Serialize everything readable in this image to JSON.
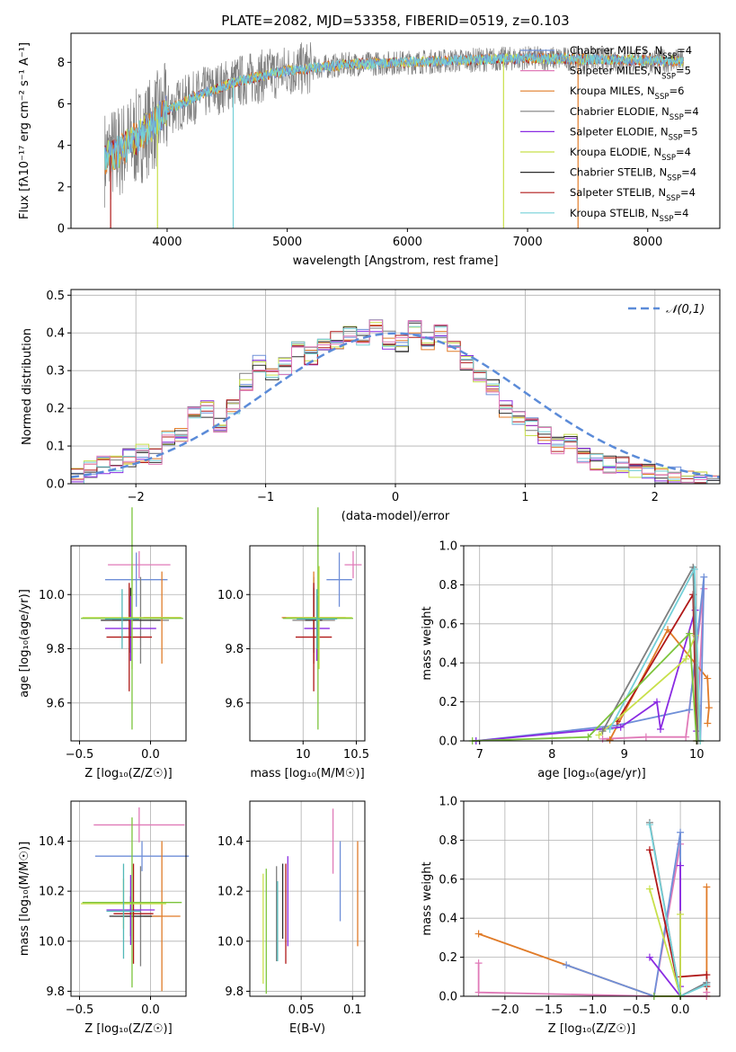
{
  "title": "PLATE=2082, MJD=53358, FIBERID=0519, z=0.103",
  "colors": {
    "blue": "#6f8fd8",
    "orange": "#e07b28",
    "gray": "#7f7f7f",
    "purple": "#8a2be2",
    "yellow": "#c8e04a",
    "dark": "#2c2c2c",
    "red": "#b01818",
    "cyan": "#74d0d8",
    "pink": "#e07ab8",
    "green": "#7cc43c",
    "teal": "#52b8b8"
  },
  "chart_data": [
    {
      "id": "spectrum",
      "type": "line",
      "xlabel": "wavelength [Angstrom, rest frame]",
      "ylabel": "Flux [fλ10⁻¹⁷ erg cm⁻² s⁻¹ A⁻¹]",
      "xlim": [
        3200,
        8600
      ],
      "ylim": [
        0,
        9.4
      ],
      "xticks": [
        4000,
        5000,
        6000,
        7000,
        8000
      ],
      "yticks": [
        0,
        2,
        4,
        6,
        8
      ],
      "grid": false,
      "legend_loc": "right",
      "continuum": {
        "x": [
          3480,
          3600,
          3800,
          4000,
          4300,
          4600,
          5000,
          5500,
          6000,
          6500,
          7000,
          7500,
          8000,
          8300
        ],
        "y": [
          3.4,
          3.7,
          4.6,
          5.7,
          6.5,
          7.1,
          7.6,
          7.9,
          8.0,
          8.1,
          8.2,
          8.15,
          8.1,
          8.05
        ]
      },
      "series": [
        {
          "name": "Chabrier MILES, N_SSP=4",
          "color_key": "blue"
        },
        {
          "name": "Salpeter MILES, N_SSP=5",
          "color_key": "pink"
        },
        {
          "name": "Kroupa MILES, N_SSP=6",
          "color_key": "orange"
        },
        {
          "name": "Chabrier ELODIE, N_SSP=4",
          "color_key": "gray"
        },
        {
          "name": "Salpeter ELODIE, N_SSP=5",
          "color_key": "purple"
        },
        {
          "name": "Kroupa ELODIE, N_SSP=4",
          "color_key": "yellow"
        },
        {
          "name": "Chabrier STELIB, N_SSP=4",
          "color_key": "dark"
        },
        {
          "name": "Salpeter STELIB, N_SSP=4",
          "color_key": "red"
        },
        {
          "name": "Kroupa STELIB, N_SSP=4",
          "color_key": "cyan"
        }
      ],
      "legend_items": [
        {
          "name": "Chabrier MILES, N",
          "sub": "SSP",
          "tail": "=4",
          "color_key": "blue"
        },
        {
          "name": "Salpeter MILES, N",
          "sub": "SSP",
          "tail": "=5",
          "color_key": "pink"
        },
        {
          "name": "Kroupa MILES, N",
          "sub": "SSP",
          "tail": "=6",
          "color_key": "orange"
        },
        {
          "name": "Chabrier ELODIE, N",
          "sub": "SSP",
          "tail": "=4",
          "color_key": "gray"
        },
        {
          "name": "Salpeter ELODIE, N",
          "sub": "SSP",
          "tail": "=5",
          "color_key": "purple"
        },
        {
          "name": "Kroupa ELODIE, N",
          "sub": "SSP",
          "tail": "=4",
          "color_key": "yellow"
        },
        {
          "name": "Chabrier STELIB, N",
          "sub": "SSP",
          "tail": "=4",
          "color_key": "dark"
        },
        {
          "name": "Salpeter STELIB, N",
          "sub": "SSP",
          "tail": "=4",
          "color_key": "red"
        },
        {
          "name": "Kroupa STELIB, N",
          "sub": "SSP",
          "tail": "=4",
          "color_key": "cyan"
        }
      ],
      "drops": [
        {
          "x": 3530,
          "color_key": "red"
        },
        {
          "x": 3920,
          "color_key": "yellow"
        },
        {
          "x": 4550,
          "color_key": "cyan"
        },
        {
          "x": 6800,
          "color_key": "yellow"
        },
        {
          "x": 7420,
          "color_key": "orange"
        }
      ]
    },
    {
      "id": "residuals",
      "type": "bar",
      "xlabel": "(data-model)/error",
      "ylabel": "Normed distribution",
      "xlim": [
        -2.5,
        2.5
      ],
      "ylim": [
        0,
        0.515
      ],
      "xticks": [
        -2,
        -1,
        0,
        1,
        2
      ],
      "yticks": [
        0.0,
        0.1,
        0.2,
        0.3,
        0.4,
        0.5
      ],
      "grid": true,
      "legend": "𝒩(0,1)",
      "legend_loc": "upper right",
      "bin_width": 0.1,
      "bins_start": -2.5,
      "series_colors": [
        "blue",
        "orange",
        "gray",
        "purple",
        "yellow",
        "dark",
        "red",
        "cyan",
        "pink"
      ],
      "base_heights": [
        0.02,
        0.03,
        0.04,
        0.05,
        0.04,
        0.05,
        0.07,
        0.06,
        0.08,
        0.07,
        0.1,
        0.12,
        0.13,
        0.17,
        0.18,
        0.2,
        0.22,
        0.16,
        0.21,
        0.22,
        0.27,
        0.32,
        0.24,
        0.3,
        0.31,
        0.33,
        0.36,
        0.34,
        0.4,
        0.37,
        0.38,
        0.39,
        0.4,
        0.39,
        0.44,
        0.42,
        0.38,
        0.43,
        0.37,
        0.41,
        0.39,
        0.38,
        0.4,
        0.33,
        0.37,
        0.32,
        0.3,
        0.28,
        0.26,
        0.22,
        0.2,
        0.17,
        0.17,
        0.15,
        0.13,
        0.12,
        0.1,
        0.11,
        0.09,
        0.07,
        0.06,
        0.07,
        0.05,
        0.05,
        0.04,
        0.04,
        0.03,
        0.03,
        0.02,
        0.02,
        0.01,
        0.01,
        0.01,
        0.01,
        0.01
      ]
    },
    {
      "id": "age_vs_Z",
      "type": "scatter",
      "xlabel": "Z [log₁₀(Z/Z☉)]",
      "ylabel": "age  [log₁₀(age/yr)]",
      "xlim": [
        -0.56,
        0.25
      ],
      "ylim": [
        9.46,
        10.18
      ],
      "xticks": [
        -0.5,
        0.0
      ],
      "xtick_labels": [
        "−0.5",
        "0.0"
      ],
      "yticks": [
        9.6,
        9.8,
        10.0
      ],
      "grid": true,
      "points": [
        {
          "x": -0.08,
          "y": 10.11,
          "xerr": 0.22,
          "yerr": 0.05,
          "c": "pink"
        },
        {
          "x": -0.1,
          "y": 10.055,
          "xerr": 0.22,
          "yerr": 0.1,
          "c": "blue"
        },
        {
          "x": -0.07,
          "y": 9.905,
          "xerr": 0.2,
          "yerr": 0.16,
          "c": "gray"
        },
        {
          "x": 0.08,
          "y": 9.915,
          "xerr": 0.13,
          "yerr": 0.17,
          "c": "orange"
        },
        {
          "x": -0.14,
          "y": 9.905,
          "xerr": 0.21,
          "yerr": 0.12,
          "c": "dark"
        },
        {
          "x": -0.14,
          "y": 9.875,
          "xerr": 0.18,
          "yerr": 0.12,
          "c": "purple"
        },
        {
          "x": -0.15,
          "y": 9.843,
          "xerr": 0.16,
          "yerr": 0.2,
          "c": "red"
        },
        {
          "x": -0.13,
          "y": 9.915,
          "xerr": 0.35,
          "yerr": 0.19,
          "c": "yellow"
        },
        {
          "x": -0.13,
          "y": 9.912,
          "xerr": 0.36,
          "yerr": 0.41,
          "c": "green"
        },
        {
          "x": -0.2,
          "y": 9.91,
          "xerr": 0.12,
          "yerr": 0.11,
          "c": "teal"
        }
      ]
    },
    {
      "id": "age_vs_mass",
      "type": "scatter",
      "xlabel": "mass [log₁₀(M/M☉)]",
      "ylabel": "",
      "xlim": [
        9.5,
        10.58
      ],
      "ylim": [
        9.46,
        10.18
      ],
      "xticks": [
        10.0,
        10.5
      ],
      "yticks": [
        9.6,
        9.8,
        10.0
      ],
      "grid": true,
      "points": [
        {
          "x": 10.47,
          "y": 10.11,
          "xerr": 0.08,
          "yerr": 0.05,
          "c": "pink"
        },
        {
          "x": 10.34,
          "y": 10.055,
          "xerr": 0.12,
          "yerr": 0.1,
          "c": "blue"
        },
        {
          "x": 10.1,
          "y": 9.905,
          "xerr": 0.2,
          "yerr": 0.16,
          "c": "gray"
        },
        {
          "x": 10.1,
          "y": 9.915,
          "xerr": 0.3,
          "yerr": 0.17,
          "c": "orange"
        },
        {
          "x": 10.1,
          "y": 9.905,
          "xerr": 0.08,
          "yerr": 0.12,
          "c": "dark"
        },
        {
          "x": 10.13,
          "y": 9.875,
          "xerr": 0.12,
          "yerr": 0.12,
          "c": "purple"
        },
        {
          "x": 10.1,
          "y": 9.843,
          "xerr": 0.17,
          "yerr": 0.2,
          "c": "red"
        },
        {
          "x": 10.15,
          "y": 9.915,
          "xerr": 0.31,
          "yerr": 0.19,
          "c": "yellow"
        },
        {
          "x": 10.14,
          "y": 9.912,
          "xerr": 0.33,
          "yerr": 0.41,
          "c": "green"
        },
        {
          "x": 10.13,
          "y": 9.91,
          "xerr": 0.19,
          "yerr": 0.11,
          "c": "teal"
        }
      ]
    },
    {
      "id": "weight_vs_age",
      "type": "line",
      "xlabel": "age  [log₁₀(age/yr)]",
      "ylabel": "mass weight",
      "xlim": [
        6.78,
        10.32
      ],
      "ylim": [
        0,
        1.0
      ],
      "xticks": [
        7,
        8,
        9,
        10
      ],
      "yticks": [
        0.0,
        0.2,
        0.4,
        0.6,
        0.8,
        1.0
      ],
      "grid": true,
      "series": [
        {
          "c": "pink",
          "x": [
            8.7,
            9.3,
            9.85,
            10.1,
            10.02
          ],
          "y": [
            0.01,
            0.02,
            0.02,
            0.78,
            0.18
          ]
        },
        {
          "c": "orange",
          "x": [
            8.8,
            9.6,
            10.15,
            10.17,
            10.15
          ],
          "y": [
            0.005,
            0.57,
            0.32,
            0.17,
            0.09
          ]
        },
        {
          "c": "blue",
          "x": [
            6.95,
            8.9,
            9.9,
            10.1,
            10.05
          ],
          "y": [
            0.0,
            0.08,
            0.16,
            0.84,
            0.0
          ]
        },
        {
          "c": "purple",
          "x": [
            6.95,
            8.95,
            9.45,
            9.5,
            9.98,
            10.0
          ],
          "y": [
            0.0,
            0.07,
            0.2,
            0.06,
            0.67,
            0.05
          ]
        },
        {
          "c": "red",
          "x": [
            8.9,
            9.95,
            10.0
          ],
          "y": [
            0.1,
            0.75,
            0.0
          ]
        },
        {
          "c": "yellow",
          "x": [
            8.65,
            9.85,
            9.98,
            10.05
          ],
          "y": [
            0.03,
            0.42,
            0.54,
            0.0
          ]
        },
        {
          "c": "gray",
          "x": [
            8.7,
            9.95,
            10.02
          ],
          "y": [
            0.05,
            0.89,
            0.0
          ]
        },
        {
          "c": "cyan",
          "x": [
            8.8,
            9.97,
            10.05
          ],
          "y": [
            0.06,
            0.88,
            0.0
          ]
        },
        {
          "c": "green",
          "x": [
            6.9,
            8.5,
            9.9,
            10.0
          ],
          "y": [
            0.0,
            0.02,
            0.55,
            0.0
          ]
        }
      ]
    },
    {
      "id": "mass_vs_Z",
      "type": "scatter",
      "xlabel": "Z [log₁₀(Z/Z☉)]",
      "ylabel": "mass [log₁₀(M/M☉)]",
      "xlim": [
        -0.56,
        0.25
      ],
      "ylim": [
        9.78,
        10.56
      ],
      "xticks": [
        -0.5,
        0.0
      ],
      "xtick_labels": [
        "−0.5",
        "0.0"
      ],
      "yticks": [
        9.8,
        10.0,
        10.2,
        10.4
      ],
      "grid": true,
      "points": [
        {
          "x": -0.08,
          "y": 10.465,
          "xerr": 0.32,
          "yerr": 0.07,
          "c": "pink"
        },
        {
          "x": -0.06,
          "y": 10.34,
          "xerr": 0.33,
          "yerr": 0.06,
          "c": "blue"
        },
        {
          "x": -0.07,
          "y": 10.1,
          "xerr": 0.14,
          "yerr": 0.2,
          "c": "gray"
        },
        {
          "x": 0.08,
          "y": 10.1,
          "xerr": 0.13,
          "yerr": 0.3,
          "c": "orange"
        },
        {
          "x": -0.14,
          "y": 10.1,
          "xerr": 0.15,
          "yerr": 0.08,
          "c": "dark"
        },
        {
          "x": -0.14,
          "y": 10.125,
          "xerr": 0.17,
          "yerr": 0.14,
          "c": "purple"
        },
        {
          "x": -0.12,
          "y": 10.11,
          "xerr": 0.14,
          "yerr": 0.2,
          "c": "red"
        },
        {
          "x": -0.19,
          "y": 10.15,
          "xerr": 0.3,
          "yerr": 0.1,
          "c": "yellow"
        },
        {
          "x": -0.13,
          "y": 10.155,
          "xerr": 0.35,
          "yerr": 0.34,
          "c": "green"
        },
        {
          "x": -0.19,
          "y": 10.12,
          "xerr": 0.12,
          "yerr": 0.19,
          "c": "teal"
        }
      ]
    },
    {
      "id": "mass_vs_ebv",
      "type": "scatter",
      "xlabel": "E(B-V)",
      "ylabel": "",
      "xlim": [
        0.0,
        0.112
      ],
      "ylim": [
        9.78,
        10.56
      ],
      "xticks": [
        0.05,
        0.1
      ],
      "yticks": [
        9.8,
        10.0,
        10.2,
        10.4
      ],
      "grid": true,
      "points": [
        {
          "x": 0.081,
          "y": 10.4,
          "xerr": 0,
          "yerr": 0.13,
          "c": "pink"
        },
        {
          "x": 0.088,
          "y": 10.24,
          "xerr": 0,
          "yerr": 0.16,
          "c": "blue"
        },
        {
          "x": 0.026,
          "y": 10.11,
          "xerr": 0,
          "yerr": 0.19,
          "c": "gray"
        },
        {
          "x": 0.105,
          "y": 10.19,
          "xerr": 0,
          "yerr": 0.21,
          "c": "orange"
        },
        {
          "x": 0.032,
          "y": 10.16,
          "xerr": 0,
          "yerr": 0.15,
          "c": "dark"
        },
        {
          "x": 0.037,
          "y": 10.16,
          "xerr": 0,
          "yerr": 0.18,
          "c": "purple"
        },
        {
          "x": 0.035,
          "y": 10.11,
          "xerr": 0,
          "yerr": 0.2,
          "c": "red"
        },
        {
          "x": 0.013,
          "y": 10.05,
          "xerr": 0,
          "yerr": 0.22,
          "c": "yellow"
        },
        {
          "x": 0.016,
          "y": 10.04,
          "xerr": 0,
          "yerr": 0.25,
          "c": "green"
        },
        {
          "x": 0.027,
          "y": 10.08,
          "xerr": 0,
          "yerr": 0.16,
          "c": "teal"
        }
      ]
    },
    {
      "id": "weight_vs_Z",
      "type": "line",
      "xlabel": "Z [log₁₀(Z/Z☉)]",
      "ylabel": "mass weight",
      "xlim": [
        -2.47,
        0.45
      ],
      "ylim": [
        0,
        1.0
      ],
      "xticks": [
        -2.0,
        -1.5,
        -1.0,
        -0.5,
        0.0
      ],
      "xtick_labels": [
        "−2.0",
        "−1.5",
        "−1.0",
        "−0.5",
        "0.0"
      ],
      "yticks": [
        0.0,
        0.2,
        0.4,
        0.6,
        0.8,
        1.0
      ],
      "grid": true,
      "series": [
        {
          "c": "orange",
          "x": [
            -2.3,
            -0.3,
            0.3,
            0.3,
            0.3
          ],
          "y": [
            0.32,
            0.0,
            0.0,
            0.56,
            0.0
          ]
        },
        {
          "c": "pink",
          "x": [
            -2.3,
            -2.3,
            -0.3,
            0.0,
            0.0,
            0.3,
            0.3
          ],
          "y": [
            0.17,
            0.02,
            0.0,
            0.78,
            0.0,
            0.0,
            0.02
          ]
        },
        {
          "c": "blue",
          "x": [
            -1.3,
            -0.3,
            0.0,
            0.0,
            0.3
          ],
          "y": [
            0.16,
            0.0,
            0.84,
            0.0,
            0.07
          ]
        },
        {
          "c": "purple",
          "x": [
            -0.35,
            0.0,
            0.0,
            0.0
          ],
          "y": [
            0.2,
            0.0,
            0.67,
            0.05
          ]
        },
        {
          "c": "red",
          "x": [
            -0.35,
            0.0,
            0.0,
            0.3,
            0.3
          ],
          "y": [
            0.75,
            0.0,
            0.1,
            0.11,
            0.05
          ]
        },
        {
          "c": "yellow",
          "x": [
            -0.35,
            0.0,
            0.0,
            0.0
          ],
          "y": [
            0.55,
            0.0,
            0.42,
            0.0
          ]
        },
        {
          "c": "gray",
          "x": [
            -0.35,
            0.0,
            0.3
          ],
          "y": [
            0.89,
            0.0,
            0.07
          ]
        },
        {
          "c": "cyan",
          "x": [
            -0.35,
            0.0,
            0.3
          ],
          "y": [
            0.88,
            0.0,
            0.06
          ]
        },
        {
          "c": "green",
          "x": [
            -0.3,
            0.0,
            0.0
          ],
          "y": [
            0.0,
            0.0,
            0.0
          ]
        }
      ]
    }
  ]
}
